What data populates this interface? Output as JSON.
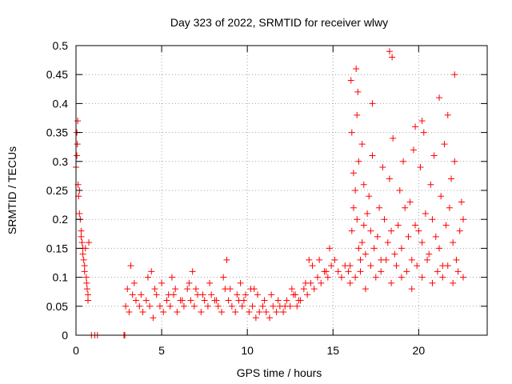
{
  "chart_data": {
    "type": "scatter",
    "title": "Day 323 of 2022, SRMTID for receiver wlwy",
    "xlabel": "GPS time / hours",
    "ylabel": "SRMTID / TECUs",
    "xlim": [
      0,
      24
    ],
    "ylim": [
      0,
      0.5
    ],
    "x_ticks": [
      0,
      5,
      10,
      15,
      20
    ],
    "x_tick_labels": [
      "0",
      "5",
      "10",
      "15",
      "20"
    ],
    "y_ticks": [
      0,
      0.05,
      0.1,
      0.15,
      0.2,
      0.25,
      0.3,
      0.35,
      0.4,
      0.45,
      0.5
    ],
    "y_tick_labels": [
      "0",
      "0.05",
      "0.1",
      "0.15",
      "0.2",
      "0.25",
      "0.3",
      "0.35",
      "0.4",
      "0.45",
      "0.5"
    ],
    "grid": true,
    "marker": "plus",
    "marker_color": "#ff0000",
    "series": [
      {
        "name": "SRMTID",
        "x": [
          0.0,
          0.05,
          0.1,
          0.15,
          0.2,
          0.25,
          0.3,
          0.35,
          0.4,
          0.45,
          0.5,
          0.55,
          0.6,
          0.65,
          0.7,
          0.75,
          0.05,
          0.08,
          0.12,
          0.2,
          0.3,
          0.4,
          0.5,
          0.62,
          0.7,
          0.9,
          1.1,
          1.25,
          2.8,
          2.85,
          2.9,
          3.1,
          3.3,
          3.5,
          3.7,
          3.9,
          4.1,
          4.3,
          4.5,
          4.7,
          4.9,
          5.1,
          5.3,
          5.5,
          5.7,
          5.9,
          6.1,
          6.3,
          6.5,
          6.7,
          6.9,
          7.1,
          7.3,
          7.5,
          7.7,
          7.9,
          8.1,
          8.3,
          8.5,
          8.7,
          8.9,
          9.1,
          9.3,
          9.5,
          9.7,
          9.9,
          10.1,
          10.3,
          10.5,
          10.7,
          10.9,
          11.1,
          11.3,
          11.5,
          11.7,
          11.9,
          12.1,
          12.3,
          12.5,
          12.7,
          12.9,
          13.1,
          13.3,
          13.5,
          13.7,
          13.9,
          14.1,
          14.3,
          14.5,
          14.7,
          14.9,
          15.1,
          15.3,
          15.5,
          15.7,
          15.9,
          3.0,
          3.4,
          3.8,
          4.2,
          4.6,
          5.0,
          5.4,
          5.8,
          6.2,
          6.6,
          7.0,
          7.4,
          7.8,
          8.2,
          8.6,
          9.0,
          9.4,
          9.8,
          10.2,
          10.6,
          11.0,
          11.4,
          11.8,
          12.2,
          12.6,
          13.0,
          13.4,
          13.8,
          14.2,
          14.6,
          3.2,
          4.4,
          5.6,
          6.8,
          8.8,
          9.6,
          10.4,
          12.8,
          13.6,
          14.8,
          16.0,
          16.1,
          16.2,
          16.3,
          16.4,
          16.5,
          16.6,
          16.7,
          16.8,
          16.9,
          17.0,
          17.2,
          17.4,
          17.6,
          17.8,
          18.0,
          18.2,
          18.4,
          18.6,
          18.8,
          19.0,
          19.2,
          19.4,
          19.6,
          19.8,
          20.0,
          20.2,
          20.4,
          20.6,
          20.8,
          21.0,
          21.2,
          21.4,
          21.6,
          21.8,
          22.0,
          22.2,
          22.4,
          22.6,
          16.0,
          16.3,
          16.6,
          16.9,
          17.2,
          17.5,
          17.8,
          18.1,
          18.4,
          18.7,
          19.0,
          19.3,
          19.6,
          19.9,
          20.2,
          20.5,
          20.8,
          21.1,
          21.4,
          21.7,
          22.0,
          22.3,
          22.6,
          16.2,
          16.5,
          16.8,
          17.1,
          17.7,
          18.3,
          18.9,
          19.5,
          20.1,
          20.7,
          21.3,
          21.9,
          22.5,
          16.1,
          16.4,
          16.7,
          17.3,
          17.9,
          18.5,
          19.1,
          19.7,
          20.3,
          20.9,
          21.5,
          22.1,
          16.05,
          16.35,
          18.3,
          18.45,
          21.2,
          20.2,
          22.1,
          16.45,
          17.3,
          19.8,
          21.7
        ],
        "y": [
          0.29,
          0.35,
          0.37,
          0.24,
          0.25,
          0.2,
          0.18,
          0.16,
          0.14,
          0.13,
          0.12,
          0.15,
          0.1,
          0.08,
          0.07,
          0.16,
          0.31,
          0.33,
          0.26,
          0.21,
          0.17,
          0.15,
          0.11,
          0.09,
          0.06,
          0.0,
          0.0,
          0.0,
          0.0,
          0.0,
          0.05,
          0.04,
          0.07,
          0.06,
          0.05,
          0.04,
          0.06,
          0.05,
          0.03,
          0.07,
          0.05,
          0.04,
          0.06,
          0.05,
          0.07,
          0.04,
          0.06,
          0.05,
          0.08,
          0.06,
          0.05,
          0.07,
          0.04,
          0.06,
          0.05,
          0.07,
          0.06,
          0.05,
          0.04,
          0.08,
          0.06,
          0.05,
          0.04,
          0.06,
          0.05,
          0.07,
          0.04,
          0.05,
          0.03,
          0.04,
          0.05,
          0.04,
          0.03,
          0.05,
          0.04,
          0.05,
          0.04,
          0.06,
          0.05,
          0.07,
          0.05,
          0.06,
          0.08,
          0.07,
          0.09,
          0.08,
          0.1,
          0.09,
          0.11,
          0.1,
          0.12,
          0.13,
          0.11,
          0.1,
          0.12,
          0.11,
          0.08,
          0.09,
          0.07,
          0.1,
          0.08,
          0.09,
          0.07,
          0.08,
          0.06,
          0.09,
          0.08,
          0.07,
          0.09,
          0.06,
          0.1,
          0.08,
          0.07,
          0.06,
          0.08,
          0.07,
          0.06,
          0.07,
          0.06,
          0.05,
          0.08,
          0.06,
          0.09,
          0.12,
          0.13,
          0.11,
          0.12,
          0.11,
          0.1,
          0.11,
          0.13,
          0.09,
          0.08,
          0.07,
          0.13,
          0.15,
          0.12,
          0.18,
          0.22,
          0.25,
          0.2,
          0.15,
          0.13,
          0.16,
          0.19,
          0.14,
          0.21,
          0.18,
          0.15,
          0.17,
          0.13,
          0.2,
          0.16,
          0.18,
          0.14,
          0.19,
          0.15,
          0.22,
          0.17,
          0.13,
          0.19,
          0.18,
          0.16,
          0.21,
          0.14,
          0.2,
          0.17,
          0.15,
          0.12,
          0.19,
          0.22,
          0.16,
          0.13,
          0.18,
          0.2,
          0.09,
          0.1,
          0.11,
          0.08,
          0.12,
          0.1,
          0.11,
          0.13,
          0.09,
          0.12,
          0.1,
          0.11,
          0.08,
          0.12,
          0.1,
          0.13,
          0.09,
          0.11,
          0.1,
          0.12,
          0.09,
          0.11,
          0.1,
          0.28,
          0.3,
          0.26,
          0.24,
          0.22,
          0.27,
          0.25,
          0.23,
          0.29,
          0.26,
          0.24,
          0.27,
          0.23,
          0.35,
          0.38,
          0.33,
          0.31,
          0.29,
          0.34,
          0.3,
          0.32,
          0.35,
          0.31,
          0.33,
          0.3,
          0.44,
          0.46,
          0.49,
          0.48,
          0.41,
          0.37,
          0.45,
          0.42,
          0.4,
          0.36,
          0.38
        ]
      }
    ]
  }
}
